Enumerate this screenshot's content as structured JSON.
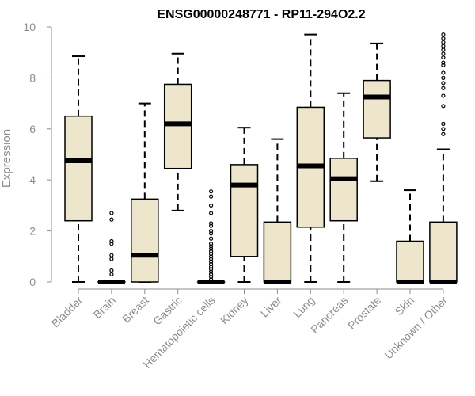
{
  "chart_data": {
    "type": "boxplot",
    "title": "ENSG00000248771 - RP11-294O2.2",
    "xlabel": "",
    "ylabel": "Expression",
    "ylim": [
      0,
      10
    ],
    "yticks": [
      "0",
      "2",
      "4",
      "6",
      "8",
      "10"
    ],
    "colors": {
      "box_fill": "#ede6cc",
      "outline": "#000000",
      "axis": "#8c8c8c"
    },
    "categories": [
      "Bladder",
      "Brain",
      "Breast",
      "Gastric",
      "Hematopoietic cells",
      "Kidney",
      "Liver",
      "Lung",
      "Pancreas",
      "Prostate",
      "Skin",
      "Unknown / Other"
    ],
    "series": [
      {
        "name": "Bladder",
        "whisker_low": 0,
        "q1": 2.4,
        "median": 4.75,
        "q3": 6.5,
        "whisker_high": 8.85,
        "outliers": []
      },
      {
        "name": "Brain",
        "whisker_low": 0,
        "q1": 0,
        "median": 0,
        "q3": 0,
        "whisker_high": 0,
        "outliers": [
          0.3,
          0.45,
          0.9,
          1.05,
          1.5,
          1.6,
          2.45,
          2.7
        ]
      },
      {
        "name": "Breast",
        "whisker_low": 0,
        "q1": 0,
        "median": 1.05,
        "q3": 3.25,
        "whisker_high": 7.0,
        "outliers": []
      },
      {
        "name": "Gastric",
        "whisker_low": 2.8,
        "q1": 4.45,
        "median": 6.2,
        "q3": 7.75,
        "whisker_high": 8.95,
        "outliers": []
      },
      {
        "name": "Hematopoietic cells",
        "whisker_low": 0,
        "q1": 0,
        "median": 0,
        "q3": 0,
        "whisker_high": 0,
        "outliers": [
          0.1,
          0.2,
          0.3,
          0.4,
          0.5,
          0.6,
          0.7,
          0.8,
          0.9,
          1.0,
          1.1,
          1.2,
          1.3,
          1.4,
          1.5,
          1.7,
          1.9,
          2.0,
          2.2,
          2.3,
          2.7,
          3.0,
          3.35,
          3.55
        ]
      },
      {
        "name": "Kidney",
        "whisker_low": 0,
        "q1": 1.0,
        "median": 3.8,
        "q3": 4.6,
        "whisker_high": 6.05,
        "outliers": []
      },
      {
        "name": "Liver",
        "whisker_low": 0,
        "q1": 0,
        "median": 0,
        "q3": 2.35,
        "whisker_high": 5.6,
        "outliers": []
      },
      {
        "name": "Lung",
        "whisker_low": 0,
        "q1": 2.15,
        "median": 4.55,
        "q3": 6.85,
        "whisker_high": 9.7,
        "outliers": []
      },
      {
        "name": "Pancreas",
        "whisker_low": 0,
        "q1": 2.4,
        "median": 4.05,
        "q3": 4.85,
        "whisker_high": 7.4,
        "outliers": []
      },
      {
        "name": "Prostate",
        "whisker_low": 3.95,
        "q1": 5.65,
        "median": 7.25,
        "q3": 7.9,
        "whisker_high": 9.35,
        "outliers": []
      },
      {
        "name": "Skin",
        "whisker_low": 0,
        "q1": 0,
        "median": 0,
        "q3": 1.6,
        "whisker_high": 3.6,
        "outliers": []
      },
      {
        "name": "Unknown / Other",
        "whisker_low": 0,
        "q1": 0,
        "median": 0,
        "q3": 2.35,
        "whisker_high": 5.2,
        "outliers": [
          5.8,
          6.0,
          6.2,
          6.9,
          7.3,
          7.6,
          7.8,
          8.0,
          8.2,
          8.5,
          8.6,
          8.8,
          8.95,
          9.1,
          9.25,
          9.4,
          9.55,
          9.7
        ]
      }
    ]
  }
}
